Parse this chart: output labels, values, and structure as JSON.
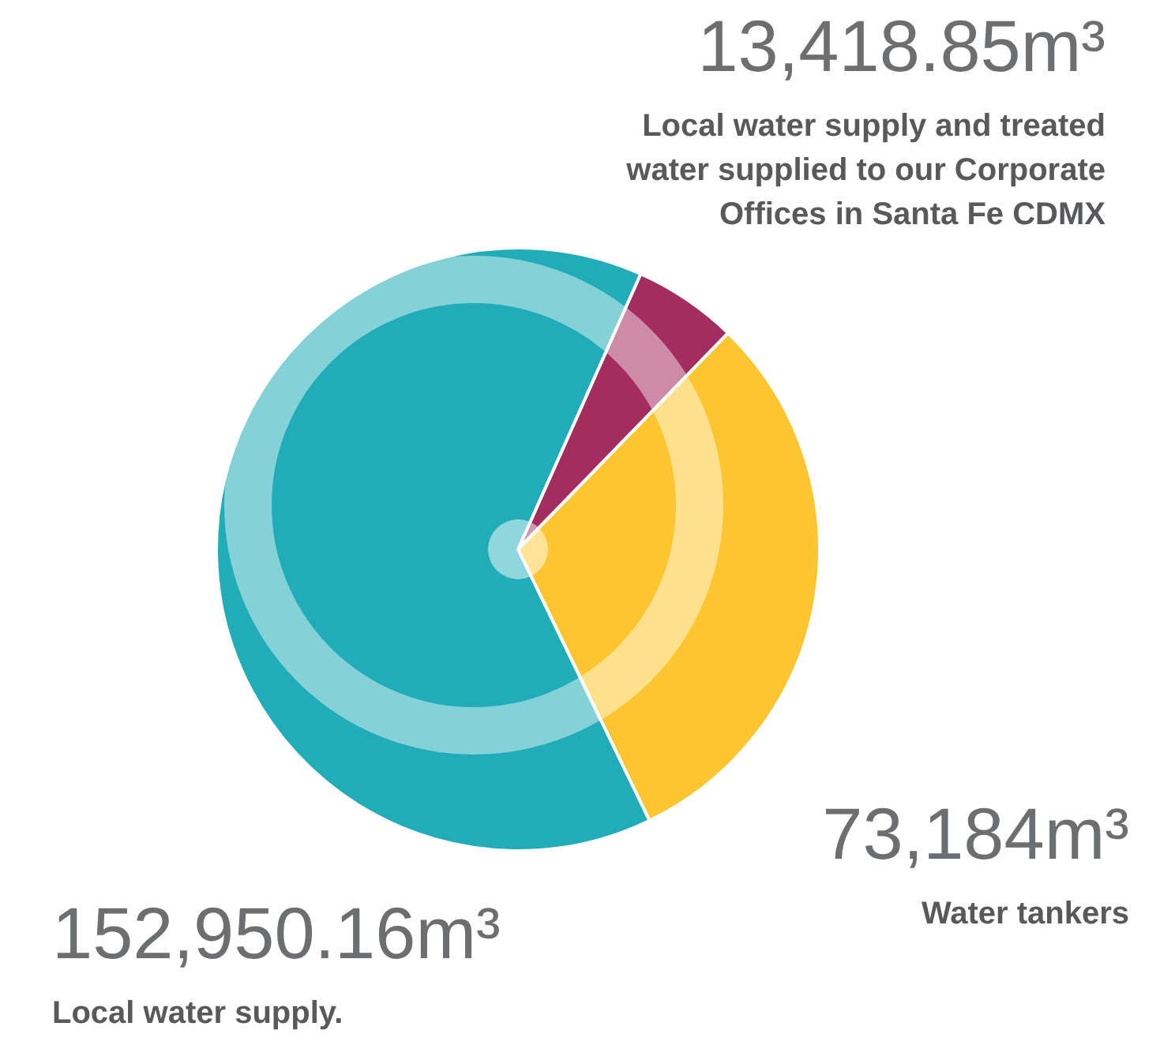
{
  "chart_data": {
    "type": "pie",
    "categories": [
      "Local water supply and treated water supplied to our Corporate Offices in Santa Fe CDMX",
      "Water tankers",
      "Local water supply."
    ],
    "values": [
      13418.85,
      73184,
      152950.16
    ],
    "value_labels": [
      "13,418.85m³",
      "73,184m³",
      "152,950.16m³"
    ],
    "colors": [
      "#a52c5f",
      "#fdc630",
      "#20adb9"
    ],
    "legend": false
  }
}
